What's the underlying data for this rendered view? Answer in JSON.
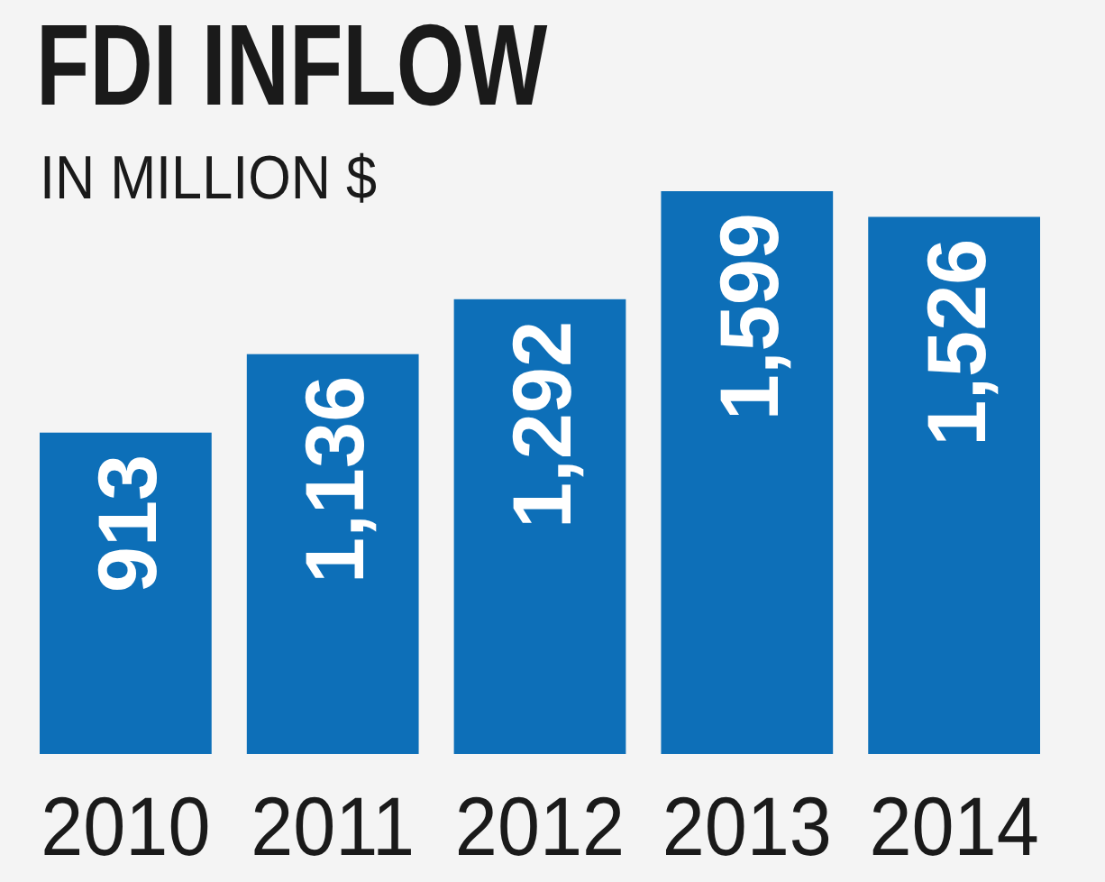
{
  "chart_data": {
    "type": "bar",
    "title": "FDI INFLOW",
    "subtitle": "IN MILLION $",
    "categories": [
      "2010",
      "2011",
      "2012",
      "2013",
      "2014"
    ],
    "values": [
      913,
      1136,
      1292,
      1599,
      1526
    ],
    "value_labels": [
      "913",
      "1,136",
      "1,292",
      "1,599",
      "1,526"
    ],
    "color": "#0d6fb8",
    "data_labels": true
  }
}
